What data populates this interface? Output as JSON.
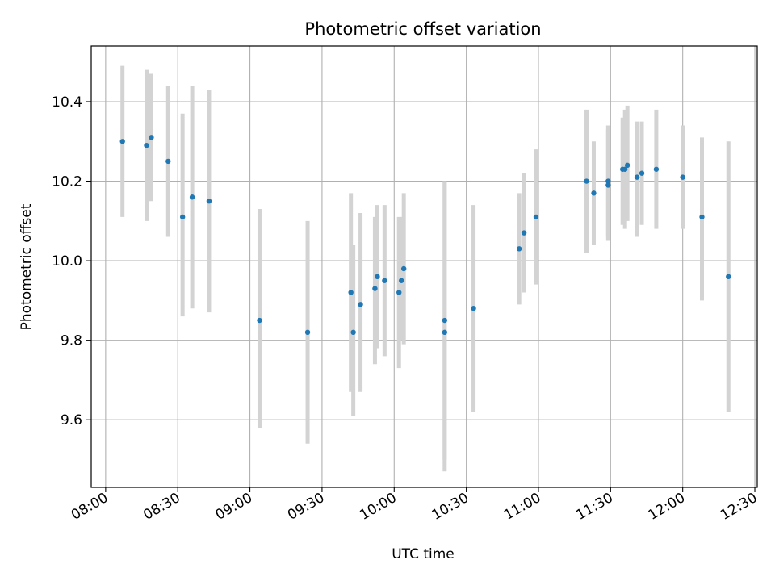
{
  "chart_data": {
    "type": "scatter",
    "title": "Photometric offset variation",
    "xlabel": "UTC time",
    "ylabel": "Photometric offset",
    "xlim": [
      "07:54",
      "12:31"
    ],
    "ylim": [
      9.43,
      10.54
    ],
    "grid": true,
    "x_tick_values": [
      "08:00",
      "08:30",
      "09:00",
      "09:30",
      "10:00",
      "10:30",
      "11:00",
      "11:30",
      "12:00",
      "12:30"
    ],
    "x_tick_labels": [
      "08:00",
      "08:30",
      "09:00",
      "09:30",
      "10:00",
      "10:30",
      "11:00",
      "11:30",
      "12:00",
      "12:30"
    ],
    "y_tick_values": [
      9.6,
      9.8,
      10.0,
      10.2,
      10.4
    ],
    "y_tick_labels": [
      "9.6",
      "9.8",
      "10.0",
      "10.2",
      "10.4"
    ],
    "colors": {
      "point": "#1f77b4",
      "errorbar": "#d3d3d3",
      "grid": "#b0b0b0"
    },
    "points": [
      {
        "t": "08:07",
        "y": 10.3,
        "lo": 10.11,
        "hi": 10.49
      },
      {
        "t": "08:17",
        "y": 10.29,
        "lo": 10.1,
        "hi": 10.48
      },
      {
        "t": "08:19",
        "y": 10.31,
        "lo": 10.15,
        "hi": 10.47
      },
      {
        "t": "08:26",
        "y": 10.25,
        "lo": 10.06,
        "hi": 10.44
      },
      {
        "t": "08:32",
        "y": 10.11,
        "lo": 9.86,
        "hi": 10.37
      },
      {
        "t": "08:36",
        "y": 10.16,
        "lo": 9.88,
        "hi": 10.44
      },
      {
        "t": "08:43",
        "y": 10.15,
        "lo": 9.87,
        "hi": 10.43
      },
      {
        "t": "09:04",
        "y": 9.85,
        "lo": 9.58,
        "hi": 10.13
      },
      {
        "t": "09:24",
        "y": 9.82,
        "lo": 9.54,
        "hi": 10.1
      },
      {
        "t": "09:42",
        "y": 9.92,
        "lo": 9.67,
        "hi": 10.17
      },
      {
        "t": "09:43",
        "y": 9.82,
        "lo": 9.61,
        "hi": 10.04
      },
      {
        "t": "09:46",
        "y": 9.89,
        "lo": 9.67,
        "hi": 10.12
      },
      {
        "t": "09:52",
        "y": 9.93,
        "lo": 9.74,
        "hi": 10.11
      },
      {
        "t": "09:53",
        "y": 9.96,
        "lo": 9.78,
        "hi": 10.14
      },
      {
        "t": "09:56",
        "y": 9.95,
        "lo": 9.76,
        "hi": 10.14
      },
      {
        "t": "10:02",
        "y": 9.92,
        "lo": 9.73,
        "hi": 10.11
      },
      {
        "t": "10:03",
        "y": 9.95,
        "lo": 9.8,
        "hi": 10.11
      },
      {
        "t": "10:04",
        "y": 9.98,
        "lo": 9.79,
        "hi": 10.17
      },
      {
        "t": "10:21",
        "y": 9.85,
        "lo": 9.5,
        "hi": 10.2
      },
      {
        "t": "10:21",
        "y": 9.82,
        "lo": 9.47,
        "hi": 10.2
      },
      {
        "t": "10:33",
        "y": 9.88,
        "lo": 9.62,
        "hi": 10.14
      },
      {
        "t": "10:52",
        "y": 10.03,
        "lo": 9.89,
        "hi": 10.17
      },
      {
        "t": "10:54",
        "y": 10.07,
        "lo": 9.92,
        "hi": 10.22
      },
      {
        "t": "10:59",
        "y": 10.11,
        "lo": 9.94,
        "hi": 10.28
      },
      {
        "t": "11:20",
        "y": 10.2,
        "lo": 10.02,
        "hi": 10.38
      },
      {
        "t": "11:23",
        "y": 10.17,
        "lo": 10.04,
        "hi": 10.3
      },
      {
        "t": "11:29",
        "y": 10.2,
        "lo": 10.05,
        "hi": 10.34
      },
      {
        "t": "11:29",
        "y": 10.19,
        "lo": 10.06,
        "hi": 10.33
      },
      {
        "t": "11:35",
        "y": 10.23,
        "lo": 10.09,
        "hi": 10.36
      },
      {
        "t": "11:36",
        "y": 10.23,
        "lo": 10.08,
        "hi": 10.38
      },
      {
        "t": "11:37",
        "y": 10.24,
        "lo": 10.1,
        "hi": 10.39
      },
      {
        "t": "11:41",
        "y": 10.21,
        "lo": 10.06,
        "hi": 10.35
      },
      {
        "t": "11:43",
        "y": 10.22,
        "lo": 10.09,
        "hi": 10.35
      },
      {
        "t": "11:49",
        "y": 10.23,
        "lo": 10.08,
        "hi": 10.38
      },
      {
        "t": "12:00",
        "y": 10.21,
        "lo": 10.08,
        "hi": 10.34
      },
      {
        "t": "12:08",
        "y": 10.11,
        "lo": 9.9,
        "hi": 10.31
      },
      {
        "t": "12:19",
        "y": 9.96,
        "lo": 9.62,
        "hi": 10.3
      }
    ]
  }
}
